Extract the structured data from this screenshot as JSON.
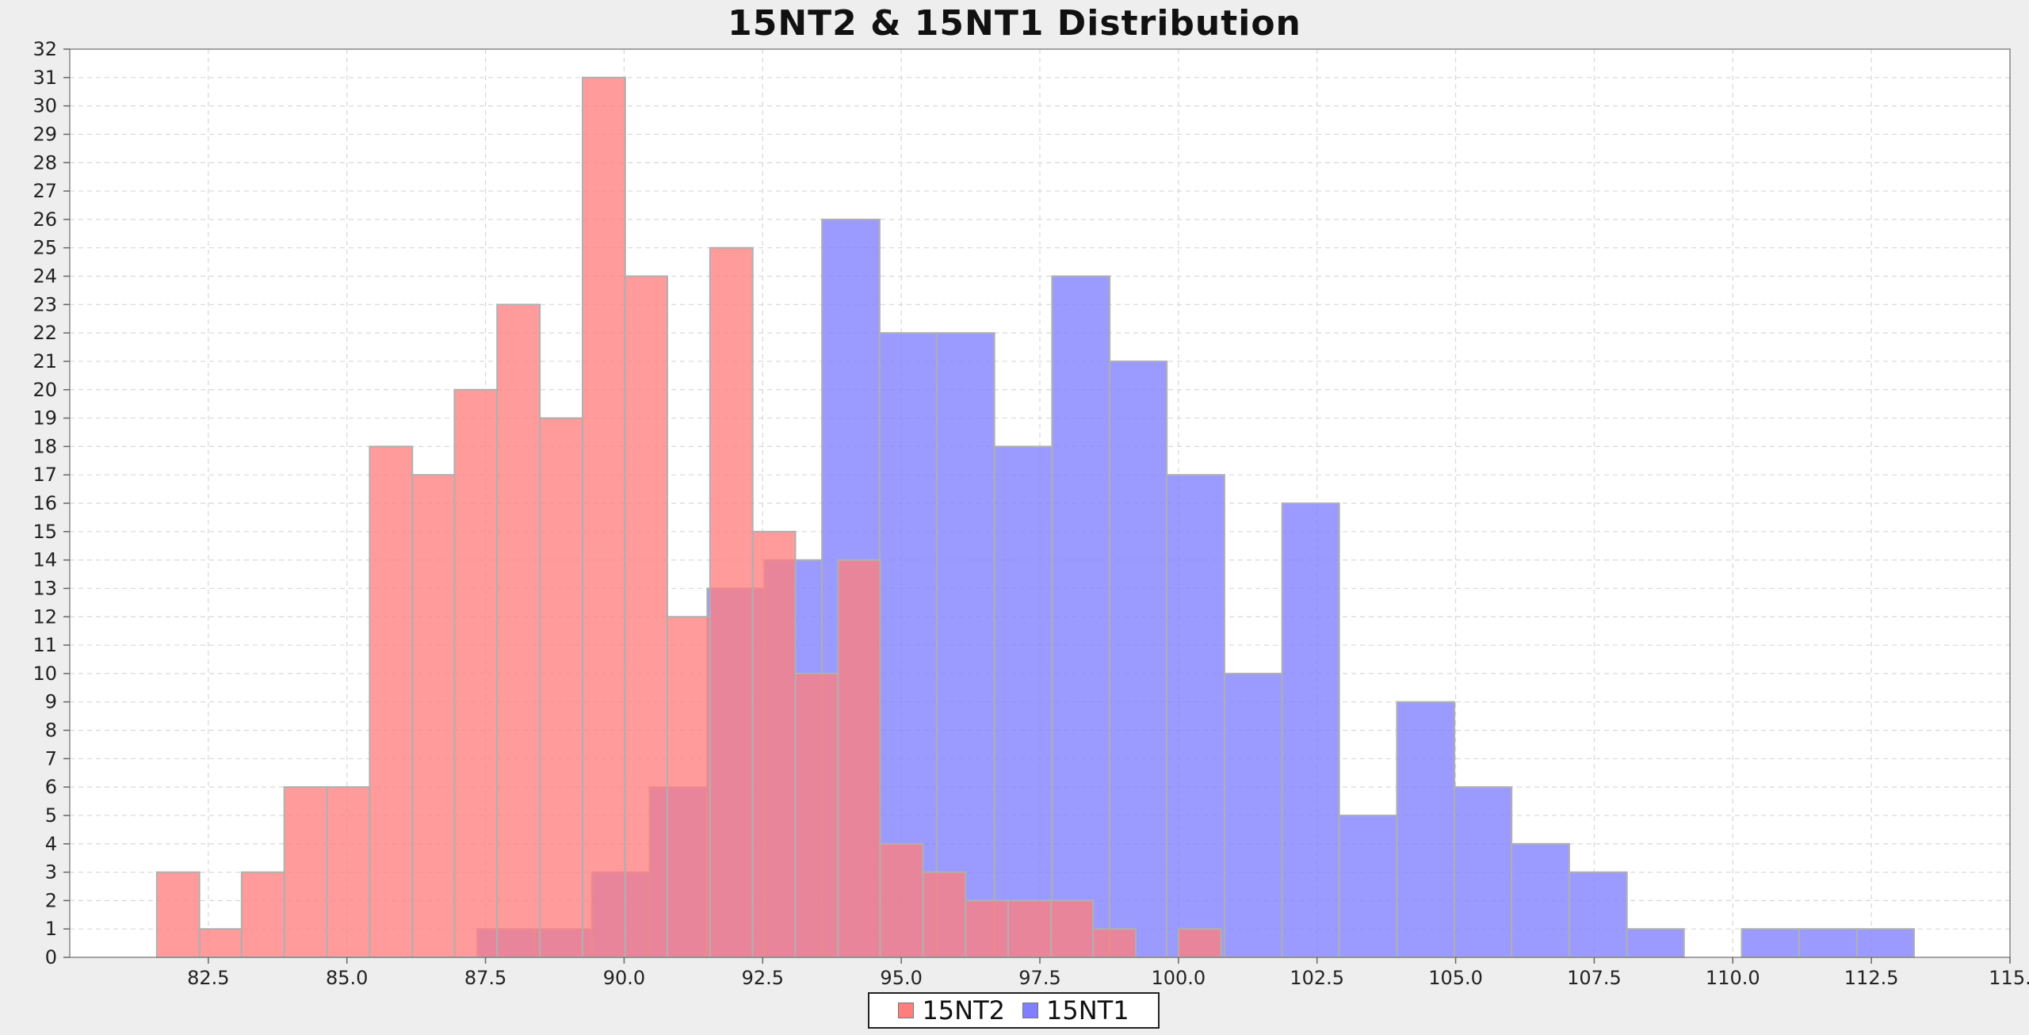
{
  "chart_data": {
    "type": "bar",
    "title": "15NT2 & 15NT1 Distribution",
    "xlabel": "",
    "ylabel": "",
    "xlim": [
      80.0,
      115.0
    ],
    "ylim": [
      0,
      32
    ],
    "x_ticks": [
      "82.5",
      "85.0",
      "87.5",
      "90.0",
      "92.5",
      "95.0",
      "97.5",
      "100.0",
      "102.5",
      "105.0",
      "107.5",
      "110.0",
      "112.5",
      "115."
    ],
    "y_ticks": [
      "0",
      "1",
      "2",
      "3",
      "4",
      "5",
      "6",
      "7",
      "8",
      "9",
      "10",
      "11",
      "12",
      "13",
      "14",
      "15",
      "16",
      "17",
      "18",
      "19",
      "20",
      "21",
      "22",
      "23",
      "24",
      "25",
      "26",
      "27",
      "28",
      "29",
      "30",
      "31",
      "32"
    ],
    "grid": true,
    "legend_position": "bottom-center",
    "series": [
      {
        "name": "15NT1",
        "color": "#7f7fff",
        "bins": [
          {
            "x0": 87.35,
            "x1": 88.39,
            "y": 1
          },
          {
            "x0": 88.39,
            "x1": 89.42,
            "y": 1
          },
          {
            "x0": 89.42,
            "x1": 90.46,
            "y": 3
          },
          {
            "x0": 90.46,
            "x1": 91.5,
            "y": 6
          },
          {
            "x0": 91.5,
            "x1": 92.53,
            "y": 13
          },
          {
            "x0": 92.53,
            "x1": 93.57,
            "y": 14
          },
          {
            "x0": 93.57,
            "x1": 94.61,
            "y": 26
          },
          {
            "x0": 94.61,
            "x1": 95.64,
            "y": 22
          },
          {
            "x0": 95.64,
            "x1": 96.68,
            "y": 22
          },
          {
            "x0": 96.68,
            "x1": 97.72,
            "y": 18
          },
          {
            "x0": 97.72,
            "x1": 98.76,
            "y": 24
          },
          {
            "x0": 98.76,
            "x1": 99.79,
            "y": 21
          },
          {
            "x0": 99.79,
            "x1": 100.83,
            "y": 17
          },
          {
            "x0": 100.83,
            "x1": 101.87,
            "y": 10
          },
          {
            "x0": 101.87,
            "x1": 102.9,
            "y": 16
          },
          {
            "x0": 102.9,
            "x1": 103.94,
            "y": 5
          },
          {
            "x0": 103.94,
            "x1": 104.98,
            "y": 9
          },
          {
            "x0": 104.98,
            "x1": 106.01,
            "y": 6
          },
          {
            "x0": 106.01,
            "x1": 107.05,
            "y": 4
          },
          {
            "x0": 107.05,
            "x1": 108.09,
            "y": 3
          },
          {
            "x0": 108.09,
            "x1": 109.12,
            "y": 1
          },
          {
            "x0": 110.16,
            "x1": 111.2,
            "y": 1
          },
          {
            "x0": 111.2,
            "x1": 112.24,
            "y": 1
          },
          {
            "x0": 112.24,
            "x1": 113.27,
            "y": 1
          }
        ]
      },
      {
        "name": "15NT2",
        "color": "#ff7f7f",
        "bins": [
          {
            "x0": 81.57,
            "x1": 82.34,
            "y": 3
          },
          {
            "x0": 82.34,
            "x1": 83.1,
            "y": 1
          },
          {
            "x0": 83.1,
            "x1": 83.87,
            "y": 3
          },
          {
            "x0": 83.87,
            "x1": 84.64,
            "y": 6
          },
          {
            "x0": 84.64,
            "x1": 85.41,
            "y": 6
          },
          {
            "x0": 85.41,
            "x1": 86.18,
            "y": 18
          },
          {
            "x0": 86.18,
            "x1": 86.94,
            "y": 17
          },
          {
            "x0": 86.94,
            "x1": 87.71,
            "y": 20
          },
          {
            "x0": 87.71,
            "x1": 88.48,
            "y": 23
          },
          {
            "x0": 88.48,
            "x1": 89.25,
            "y": 19
          },
          {
            "x0": 89.25,
            "x1": 90.02,
            "y": 31
          },
          {
            "x0": 90.02,
            "x1": 90.78,
            "y": 24
          },
          {
            "x0": 90.78,
            "x1": 91.55,
            "y": 12
          },
          {
            "x0": 91.55,
            "x1": 92.32,
            "y": 25
          },
          {
            "x0": 92.32,
            "x1": 93.09,
            "y": 15
          },
          {
            "x0": 93.09,
            "x1": 93.86,
            "y": 10
          },
          {
            "x0": 93.86,
            "x1": 94.62,
            "y": 14
          },
          {
            "x0": 94.62,
            "x1": 95.39,
            "y": 4
          },
          {
            "x0": 95.39,
            "x1": 96.16,
            "y": 3
          },
          {
            "x0": 96.16,
            "x1": 96.93,
            "y": 2
          },
          {
            "x0": 96.93,
            "x1": 97.7,
            "y": 2
          },
          {
            "x0": 97.7,
            "x1": 98.46,
            "y": 2
          },
          {
            "x0": 98.46,
            "x1": 99.23,
            "y": 1
          },
          {
            "x0": 100.0,
            "x1": 100.77,
            "y": 1
          }
        ]
      }
    ],
    "legend": [
      {
        "name": "15NT2",
        "color": "#ff7f7f"
      },
      {
        "name": "15NT1",
        "color": "#7f7fff"
      }
    ]
  }
}
